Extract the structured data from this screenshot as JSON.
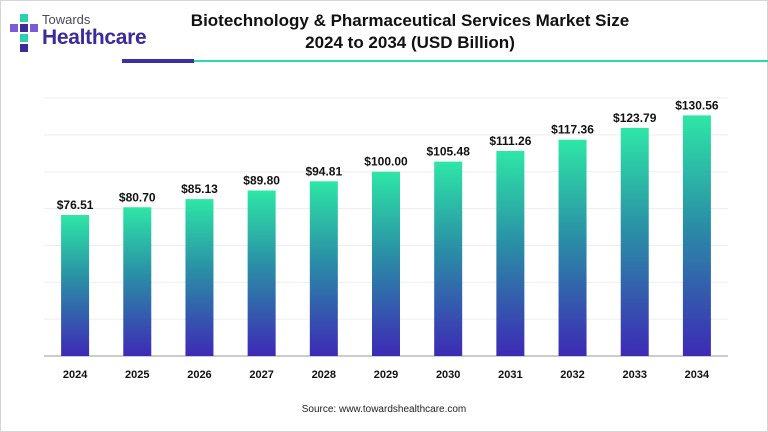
{
  "logo": {
    "small": "Towards",
    "big": "Healthcare"
  },
  "title_line1": "Biotechnology & Pharmaceutical Services Market Size",
  "title_line2": "2024 to 2034 (USD Billion)",
  "source": "Source: www.towardshealthcare.com",
  "colors": {
    "bar_top": "#2ee6a6",
    "bar_mid": "#2a8fa6",
    "bar_bottom": "#3d2ab5",
    "accent": "#3b2fa8",
    "rule": "#29d9b0"
  },
  "chart_data": {
    "type": "bar",
    "categories": [
      "2024",
      "2025",
      "2026",
      "2027",
      "2028",
      "2029",
      "2030",
      "2031",
      "2032",
      "2033",
      "2034"
    ],
    "values": [
      76.51,
      80.7,
      85.13,
      89.8,
      94.81,
      100.0,
      105.48,
      111.26,
      117.36,
      123.79,
      130.56
    ],
    "value_labels": [
      "$76.51",
      "$80.70",
      "$85.13",
      "$89.80",
      "$94.81",
      "$100.00",
      "$105.48",
      "$111.26",
      "$117.36",
      "$123.79",
      "$130.56"
    ],
    "ylim": [
      0,
      140
    ],
    "grid": true,
    "legend": "none"
  }
}
